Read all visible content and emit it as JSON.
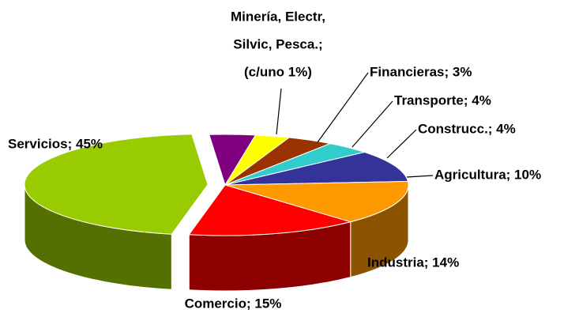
{
  "chart_data": {
    "type": "pie3d",
    "values": [
      4,
      3,
      4,
      4,
      10,
      14,
      15,
      45
    ],
    "value_labels": [
      [
        "Minería, Electr,",
        "Silvic, Pesca.;",
        "(c/uno 1%)"
      ],
      [
        "Financieras; 3%"
      ],
      [
        "Transporte; 4%"
      ],
      [
        "Construcc.; 4%"
      ],
      [
        "Agricultura; 10%"
      ],
      [
        "Industria; 14%"
      ],
      [
        "Comercio; 15%"
      ],
      [
        "Servicios; 45%"
      ]
    ],
    "colors": [
      "#800080",
      "#ffff00",
      "#993300",
      "#33cccc",
      "#333399",
      "#ff9900",
      "#ff0000",
      "#99cc00"
    ],
    "exploded": [
      false,
      false,
      false,
      false,
      false,
      false,
      false,
      true
    ]
  }
}
